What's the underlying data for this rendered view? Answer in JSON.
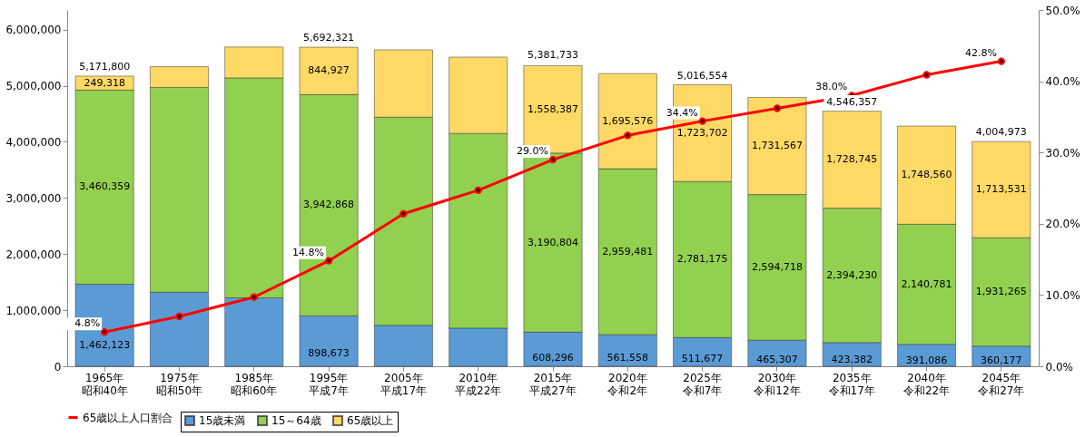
{
  "chart_data": {
    "type": "bar",
    "stacked": true,
    "categories": [
      "1965年昭和40年",
      "1975年昭和50年",
      "1985年昭和60年",
      "1995年平成7年",
      "2005年平成17年",
      "2010年平成22年",
      "2015年平成27年",
      "2020年令和2年",
      "2025年令和7年",
      "2030年令和12年",
      "2035年令和17年",
      "2040年令和22年",
      "2045年令和27年"
    ],
    "series": [
      {
        "name": "15歳未満",
        "color": "#5b9bd5",
        "values": [
          1462123,
          1320000,
          1220000,
          898673,
          730000,
          680000,
          608296,
          561558,
          511677,
          465307,
          423382,
          391086,
          360177
        ],
        "value_labels": [
          "1,462,123",
          null,
          null,
          "898,673",
          null,
          null,
          "608,296",
          "561,558",
          "511,677",
          "465,307",
          "423,382",
          "391,086",
          "360,177"
        ]
      },
      {
        "name": "15～64歳",
        "color": "#92d050",
        "values": [
          3460359,
          3650000,
          3920000,
          3942868,
          3710000,
          3470000,
          3190804,
          2959481,
          2781175,
          2594718,
          2394230,
          2140781,
          1931265
        ],
        "value_labels": [
          "3,460,359",
          null,
          null,
          "3,942,868",
          null,
          null,
          "3,190,804",
          "2,959,481",
          "2,781,175",
          "2,594,718",
          "2,394,230",
          "2,140,781",
          "1,931,265"
        ]
      },
      {
        "name": "65歳以上",
        "color": "#ffd966",
        "values": [
          249318,
          370000,
          550000,
          844927,
          1200000,
          1360000,
          1558387,
          1695576,
          1723702,
          1731567,
          1728745,
          1748560,
          1713531
        ],
        "value_labels": [
          "249,318",
          null,
          null,
          "844,927",
          null,
          null,
          "1,558,387",
          "1,695,576",
          "1,723,702",
          "1,731,567",
          "1,728,745",
          "1,748,560",
          "1,713,531"
        ]
      },
      {
        "name": "65歳以上人口割合",
        "type": "line",
        "axis": "y2",
        "line_style": "solid",
        "color": "#ff0000",
        "values": [
          4.8,
          7.0,
          9.7,
          14.8,
          21.4,
          24.7,
          29.0,
          32.4,
          34.4,
          36.2,
          38.0,
          40.9,
          42.8
        ],
        "value_labels": [
          "4.8%",
          null,
          null,
          "14.8%",
          null,
          null,
          "29.0%",
          null,
          "34.4%",
          null,
          "38.0%",
          null,
          "42.8%"
        ]
      }
    ],
    "annotations": [
      {
        "text": "5,171,800",
        "x": "1965年昭和40年",
        "y": 5171800
      },
      {
        "text": "5,692,321",
        "x": "1995年平成7年",
        "y": 5692321
      },
      {
        "text": "5,381,733",
        "x": "2015年平成27年",
        "y": 5381733
      },
      {
        "text": "5,016,554",
        "x": "2025年令和7年",
        "y": 5016554
      },
      {
        "text": "4,546,357",
        "x": "2035年令和17年",
        "y": 4546357
      },
      {
        "text": "4,004,973",
        "x": "2045年令和27年",
        "y": 4004973
      }
    ],
    "ylim": [
      0,
      6350000
    ],
    "yticks": [
      0,
      {
        "value": 1000000,
        "label": "1,000,000"
      },
      {
        "value": 2000000,
        "label": "2,000,000"
      },
      {
        "value": 3000000,
        "label": "3,000,000"
      },
      {
        "value": 4000000,
        "label": "4,000,000"
      },
      {
        "value": 5000000,
        "label": "5,000,000"
      },
      {
        "value": 6000000,
        "label": "6,000,000"
      }
    ],
    "y2lim": [
      0,
      50
    ],
    "y2ticks": [
      {
        "value": 0,
        "label": "0.0%"
      },
      {
        "value": 10,
        "label": "10.0%"
      },
      {
        "value": 20,
        "label": "20.0%"
      },
      {
        "value": 30,
        "label": "30.0%"
      },
      {
        "value": 40,
        "label": "40.0%"
      },
      {
        "value": 50,
        "label": "50.0%"
      }
    ],
    "marker": "circle",
    "grid": false,
    "legend": "bottom"
  }
}
